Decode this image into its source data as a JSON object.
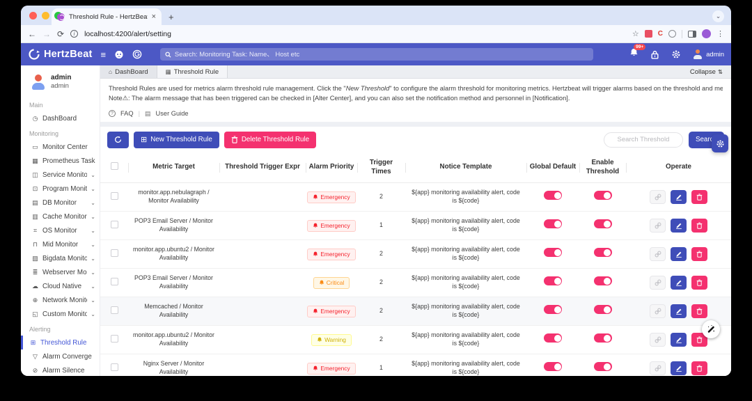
{
  "browser": {
    "tab_title": "Threshold Rule - HertzBeat",
    "close_tab": "×",
    "new_tab": "+",
    "url": "localhost:4200/alert/setting"
  },
  "header": {
    "brand": "HertzBeat",
    "search_placeholder": "Search: Monitoring Task: Name、 Host etc",
    "notification_badge": "99+",
    "username": "admin"
  },
  "sidebar": {
    "user": {
      "name": "admin",
      "role": "admin"
    },
    "groups": [
      {
        "label": "Main",
        "items": [
          {
            "label": "DashBoard",
            "icon": "◷"
          }
        ]
      },
      {
        "label": "Monitoring",
        "items": [
          {
            "label": "Monitor Center",
            "icon": "▭"
          },
          {
            "label": "Prometheus Task",
            "icon": "▦"
          },
          {
            "label": "Service Monitor",
            "icon": "◫",
            "expandable": true
          },
          {
            "label": "Program Monitor",
            "icon": "⊡",
            "expandable": true
          },
          {
            "label": "DB Monitor",
            "icon": "▤",
            "expandable": true
          },
          {
            "label": "Cache Monitor",
            "icon": "▥",
            "expandable": true
          },
          {
            "label": "OS Monitor",
            "icon": "⌗",
            "expandable": true
          },
          {
            "label": "Mid Monitor",
            "icon": "⊓",
            "expandable": true
          },
          {
            "label": "Bigdata Monitor",
            "icon": "▨",
            "expandable": true
          },
          {
            "label": "Webserver Monitor",
            "icon": "≣",
            "expandable": true
          },
          {
            "label": "Cloud Native",
            "icon": "☁",
            "expandable": true
          },
          {
            "label": "Network Monitor",
            "icon": "⊕",
            "expandable": true
          },
          {
            "label": "Custom Monitor",
            "icon": "◱",
            "expandable": true
          }
        ]
      },
      {
        "label": "Alerting",
        "items": [
          {
            "label": "Threshold Rule",
            "icon": "⊞",
            "active": true
          },
          {
            "label": "Alarm Converge",
            "icon": "▽"
          },
          {
            "label": "Alarm Silence",
            "icon": "⊘"
          }
        ]
      }
    ]
  },
  "page": {
    "tabs": [
      {
        "label": "DashBoard",
        "icon": "⌂"
      },
      {
        "label": "Threshold Rule",
        "icon": "▦",
        "active": true
      }
    ],
    "collapse_label": "Collapse",
    "description_line1_pre": "Threshold Rules are used for metrics alarm threshold rule management. Click the \"",
    "description_line1_em": "New Threshold",
    "description_line1_post": "\" to configure the alarm threshold for monitoring metrics. Hertzbeat will trigger alarms based on the threshold and metrics data.",
    "description_line2": "Note⚠: The alarm message that has been triggered can be checked in [Alter Center], and you can also set the notification method and personnel in [Notification].",
    "faq_label": "FAQ",
    "user_guide_label": "User Guide"
  },
  "toolbar": {
    "new_button": "New Threshold Rule",
    "delete_button": "Delete Threshold Rule",
    "search_placeholder": "Search Threshold",
    "search_button": "Search"
  },
  "table": {
    "headers": [
      "Metric Target",
      "Threshold Trigger Expr",
      "Alarm Priority",
      "Trigger Times",
      "Notice Template",
      "Global Default",
      "Enable Threshold",
      "Operate"
    ],
    "rows": [
      {
        "target": "monitor.app.nebulagraph / Monitor Availability",
        "expr": "",
        "priority": "Emergency",
        "level": "emergency",
        "times": "2",
        "template": "${app} monitoring availability alert, code is ${code}",
        "global_default": true,
        "enable": true
      },
      {
        "target": "POP3 Email Server / Monitor Availability",
        "expr": "",
        "priority": "Emergency",
        "level": "emergency",
        "times": "1",
        "template": "${app} monitoring availability alert, code is ${code}",
        "global_default": true,
        "enable": true
      },
      {
        "target": "monitor.app.ubuntu2 / Monitor Availability",
        "expr": "",
        "priority": "Emergency",
        "level": "emergency",
        "times": "2",
        "template": "${app} monitoring availability alert, code is ${code}",
        "global_default": true,
        "enable": true
      },
      {
        "target": "POP3 Email Server / Monitor Availability",
        "expr": "",
        "priority": "Critical",
        "level": "critical",
        "times": "2",
        "template": "${app} monitoring availability alert, code is ${code}",
        "global_default": true,
        "enable": true
      },
      {
        "target": "Memcached / Monitor Availability",
        "expr": "",
        "priority": "Emergency",
        "level": "emergency",
        "times": "2",
        "template": "${app} monitoring availability alert, code is ${code}",
        "global_default": true,
        "enable": true,
        "shaded": true
      },
      {
        "target": "monitor.app.ubuntu2 / Monitor Availability",
        "expr": "",
        "priority": "Warning",
        "level": "warning",
        "times": "2",
        "template": "${app} monitoring availability alert, code is ${code}",
        "global_default": true,
        "enable": true
      },
      {
        "target": "Nginx Server / Monitor Availability",
        "expr": "",
        "priority": "Emergency",
        "level": "emergency",
        "times": "1",
        "template": "${app} monitoring availability alert, code is ${code}",
        "global_default": true,
        "enable": true
      }
    ]
  },
  "colors": {
    "accent_indigo": "#4c58c5",
    "button_indigo": "#3f4db8",
    "pink": "#f4316f",
    "emergency": "#f5222d",
    "critical": "#fa8c16",
    "warning": "#cfb006",
    "traffic_lights": [
      "#ff5f57",
      "#febc2e",
      "#28c840"
    ]
  }
}
